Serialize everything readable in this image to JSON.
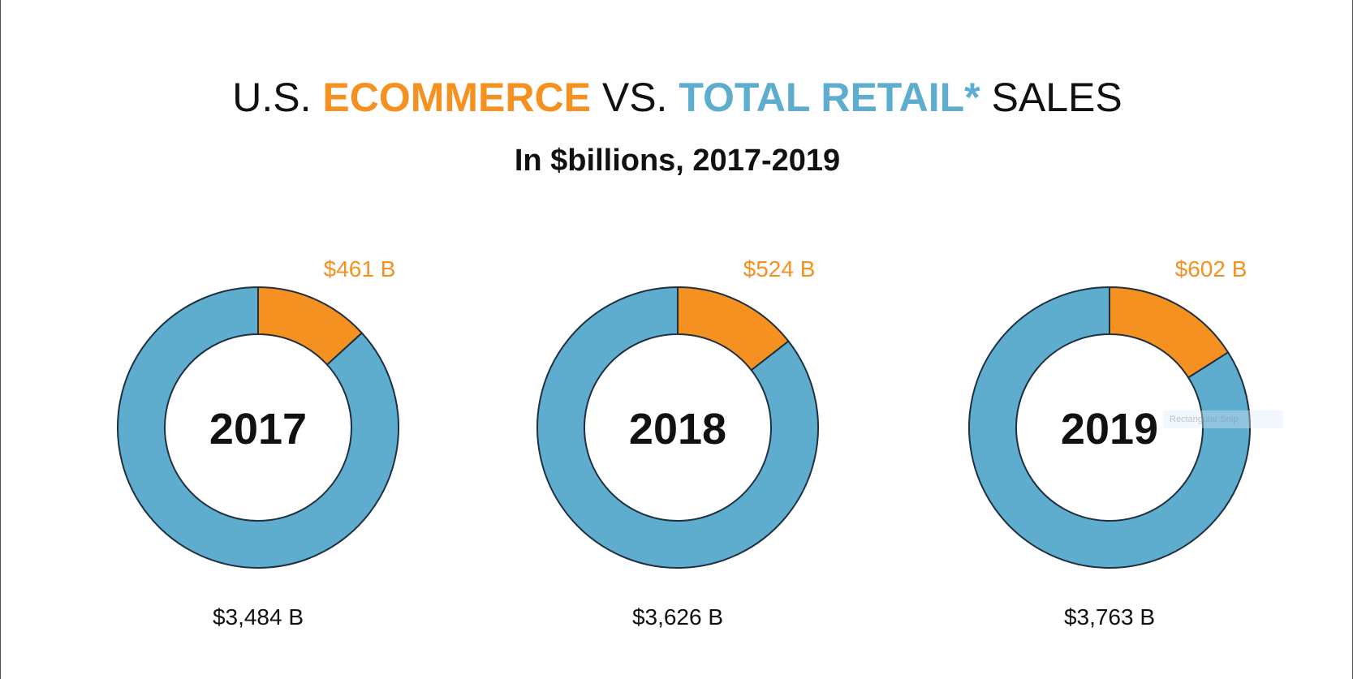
{
  "title": {
    "part1": "U.S. ",
    "ecommerce": "ECOMMERCE",
    "part2": " VS. ",
    "total_retail": "TOTAL RETAIL*",
    "part3": " SALES"
  },
  "subtitle": "In $billions, 2017-2019",
  "colors": {
    "ecommerce": "#f59120",
    "total_retail": "#5eadcf",
    "outline": "#1f3040",
    "text": "#111111"
  },
  "watermark": "Rectangular Snip",
  "chart_data": {
    "type": "pie",
    "variant": "donut",
    "title": "U.S. ECOMMERCE VS. TOTAL RETAIL* SALES",
    "subtitle": "In $billions, 2017-2019",
    "units": "$ billions",
    "legend": "colored words in title",
    "charts": [
      {
        "year": "2017",
        "ecommerce": 461,
        "ecommerce_label": "$461 B",
        "total_retail": 3484,
        "total_label": "$3,484 B"
      },
      {
        "year": "2018",
        "ecommerce": 524,
        "ecommerce_label": "$524 B",
        "total_retail": 3626,
        "total_label": "$3,626 B"
      },
      {
        "year": "2019",
        "ecommerce": 602,
        "ecommerce_label": "$602 B",
        "total_retail": 3763,
        "total_label": "$3,763 B"
      }
    ]
  }
}
